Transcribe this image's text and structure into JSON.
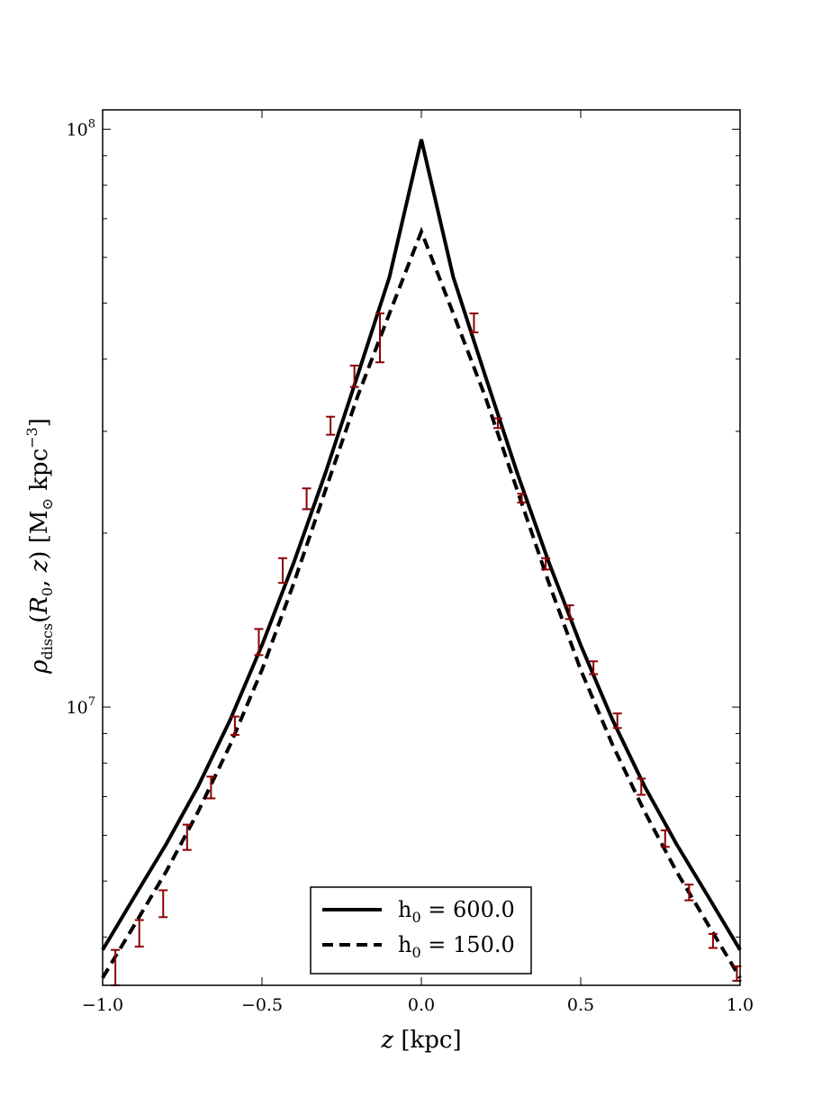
{
  "chart_data": {
    "type": "line",
    "title": "",
    "xlabel": "z [kpc]",
    "ylabel": "ρ_discs(R_0, z) [M_⊙ kpc^−3]",
    "xlim": [
      -1.0,
      1.0
    ],
    "ylim": [
      3300000,
      108000000
    ],
    "yscale": "log",
    "grid": false,
    "legend_position": "bottom-center",
    "x_ticks": [
      {
        "value": -1.0,
        "label": "−1.0"
      },
      {
        "value": -0.5,
        "label": "−0.5"
      },
      {
        "value": 0.0,
        "label": "0.0"
      },
      {
        "value": 0.5,
        "label": "0.5"
      },
      {
        "value": 1.0,
        "label": "1.0"
      }
    ],
    "y_ticks": [
      {
        "value": 10000000,
        "base": "10",
        "exp": "7"
      },
      {
        "value": 100000000,
        "base": "10",
        "exp": "8"
      }
    ],
    "y_minor_ticks": [
      4000000,
      5000000,
      6000000,
      7000000,
      8000000,
      9000000,
      20000000,
      30000000,
      40000000,
      50000000,
      60000000,
      70000000,
      80000000,
      90000000
    ],
    "series": [
      {
        "name": "h0 = 600.0",
        "legend_label": "h",
        "legend_sub": "0",
        "legend_value": " = 600.0",
        "style": "solid",
        "color": "#000000",
        "x": [
          -1.0,
          -0.9,
          -0.8,
          -0.7,
          -0.6,
          -0.5,
          -0.4,
          -0.3,
          -0.2,
          -0.1,
          0.0,
          0.1,
          0.2,
          0.3,
          0.4,
          0.5,
          0.6,
          0.7,
          0.8,
          0.9,
          1.0
        ],
        "y": [
          3800000,
          4700000,
          5800000,
          7300000,
          9500000,
          12800000,
          17800000,
          25500000,
          37500000,
          55500000,
          96000000,
          55500000,
          37500000,
          25500000,
          17800000,
          12800000,
          9500000,
          7300000,
          5800000,
          4700000,
          3800000
        ]
      },
      {
        "name": "h0 = 150.0",
        "legend_label": "h",
        "legend_sub": "0",
        "legend_value": " = 150.0",
        "style": "dashed",
        "color": "#000000",
        "x": [
          -1.0,
          -0.9,
          -0.8,
          -0.7,
          -0.6,
          -0.5,
          -0.4,
          -0.3,
          -0.2,
          -0.1,
          0.0,
          0.1,
          0.2,
          0.3,
          0.4,
          0.5,
          0.6,
          0.7,
          0.8,
          0.9,
          1.0
        ],
        "y": [
          3400000,
          4200000,
          5200000,
          6600000,
          8600000,
          11600000,
          16400000,
          23800000,
          34500000,
          48000000,
          66500000,
          48000000,
          34500000,
          23800000,
          16400000,
          11600000,
          8600000,
          6600000,
          5200000,
          4200000,
          3400000
        ]
      }
    ],
    "error_bars": {
      "color": "#8b0000",
      "points": [
        {
          "x": -0.96,
          "y": 3550000,
          "lo": 3300000,
          "hi": 3800000
        },
        {
          "x": -0.885,
          "y": 4050000,
          "lo": 3850000,
          "hi": 4280000
        },
        {
          "x": -0.81,
          "y": 4570000,
          "lo": 4330000,
          "hi": 4820000
        },
        {
          "x": -0.735,
          "y": 5970000,
          "lo": 5660000,
          "hi": 6260000
        },
        {
          "x": -0.66,
          "y": 7250000,
          "lo": 6950000,
          "hi": 7580000
        },
        {
          "x": -0.585,
          "y": 9280000,
          "lo": 8950000,
          "hi": 9630000
        },
        {
          "x": -0.51,
          "y": 12950000,
          "lo": 12300000,
          "hi": 13650000
        },
        {
          "x": -0.435,
          "y": 17280000,
          "lo": 16400000,
          "hi": 18100000
        },
        {
          "x": -0.36,
          "y": 22900000,
          "lo": 22000000,
          "hi": 23900000
        },
        {
          "x": -0.285,
          "y": 30700000,
          "lo": 29600000,
          "hi": 31800000
        },
        {
          "x": -0.21,
          "y": 37400000,
          "lo": 35800000,
          "hi": 39000000
        },
        {
          "x": -0.13,
          "y": 45000000,
          "lo": 39500000,
          "hi": 48000000
        },
        {
          "x": 0.165,
          "y": 46300000,
          "lo": 44500000,
          "hi": 48000000
        },
        {
          "x": 0.24,
          "y": 31000000,
          "lo": 30400000,
          "hi": 31600000
        },
        {
          "x": 0.315,
          "y": 23000000,
          "lo": 22600000,
          "hi": 23400000
        },
        {
          "x": 0.39,
          "y": 17700000,
          "lo": 17300000,
          "hi": 18100000
        },
        {
          "x": 0.465,
          "y": 14600000,
          "lo": 14200000,
          "hi": 15000000
        },
        {
          "x": 0.54,
          "y": 11700000,
          "lo": 11400000,
          "hi": 12000000
        },
        {
          "x": 0.615,
          "y": 9480000,
          "lo": 9200000,
          "hi": 9750000
        },
        {
          "x": 0.69,
          "y": 7280000,
          "lo": 7050000,
          "hi": 7520000
        },
        {
          "x": 0.765,
          "y": 5920000,
          "lo": 5730000,
          "hi": 6120000
        },
        {
          "x": 0.84,
          "y": 4780000,
          "lo": 4630000,
          "hi": 4930000
        },
        {
          "x": 0.915,
          "y": 3940000,
          "lo": 3830000,
          "hi": 4050000
        },
        {
          "x": 0.99,
          "y": 3460000,
          "lo": 3360000,
          "hi": 3560000
        }
      ]
    }
  }
}
